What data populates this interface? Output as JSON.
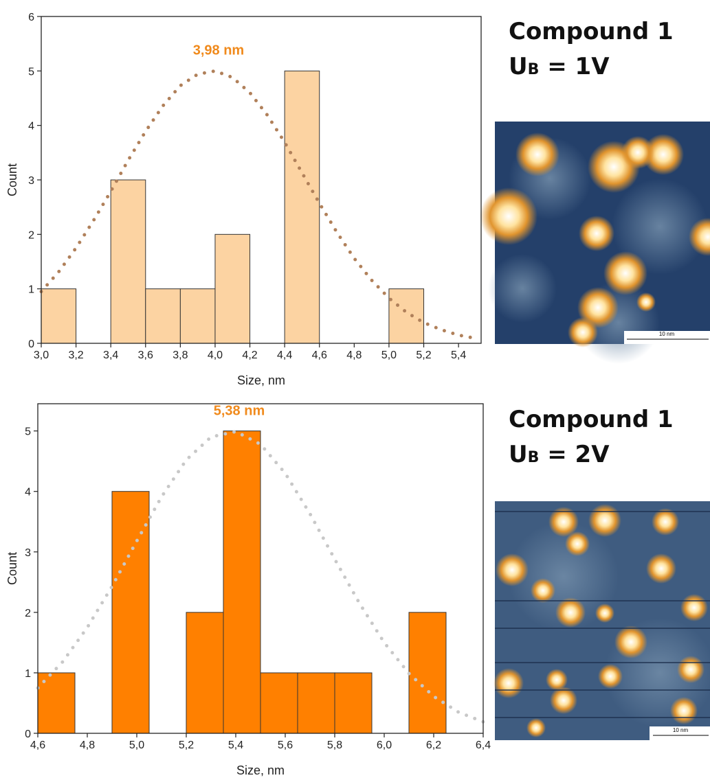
{
  "chart_data": [
    {
      "type": "histogram",
      "xlabel": "Size, nm",
      "ylabel": "Count",
      "bins": [
        3.0,
        3.2,
        3.4,
        3.6,
        3.8,
        4.0,
        4.2,
        4.4,
        4.6,
        4.8,
        5.0,
        5.2
      ],
      "values": [
        1,
        0,
        3,
        1,
        1,
        2,
        0,
        5,
        0,
        0,
        1
      ],
      "color": "#fcd3a2",
      "edgecolor": "#333333",
      "xlim": [
        3.0,
        5.53
      ],
      "ylim": [
        0,
        6
      ],
      "xticks": [
        {
          "value": 3.0,
          "label": "3,0"
        },
        {
          "value": 3.2,
          "label": "3,2"
        },
        {
          "value": 3.4,
          "label": "3,4"
        },
        {
          "value": 3.6,
          "label": "3,6"
        },
        {
          "value": 3.8,
          "label": "3,8"
        },
        {
          "value": 4.0,
          "label": "4,0"
        },
        {
          "value": 4.2,
          "label": "4,2"
        },
        {
          "value": 4.4,
          "label": "4,4"
        },
        {
          "value": 4.6,
          "label": "4,6"
        },
        {
          "value": 4.8,
          "label": "4,8"
        },
        {
          "value": 5.0,
          "label": "5,0"
        },
        {
          "value": 5.2,
          "label": "5,2"
        },
        {
          "value": 5.4,
          "label": "5,4"
        }
      ],
      "yticks": [
        0,
        1,
        2,
        3,
        4,
        5,
        6
      ],
      "fit": {
        "color": "#b0805a",
        "x": [
          3.0,
          3.1,
          3.2,
          3.3,
          3.4,
          3.5,
          3.6,
          3.7,
          3.8,
          3.9,
          4.0,
          4.1,
          4.2,
          4.3,
          4.4,
          4.5,
          4.6,
          4.7,
          4.8,
          4.9,
          5.0,
          5.1,
          5.2,
          5.3,
          5.4,
          5.5
        ],
        "values": [
          0.95,
          1.31,
          1.75,
          2.25,
          2.79,
          3.36,
          3.89,
          4.36,
          4.73,
          4.94,
          5.0,
          4.88,
          4.6,
          4.19,
          3.69,
          3.13,
          2.57,
          2.04,
          1.56,
          1.16,
          0.83,
          0.57,
          0.38,
          0.25,
          0.15,
          0.09
        ]
      },
      "annotation": {
        "text": "3,98 nm",
        "color": "#f08a1c"
      }
    },
    {
      "type": "histogram",
      "xlabel": "Size, nm",
      "ylabel": "Count",
      "bins": [
        4.6,
        4.75,
        4.9,
        5.05,
        5.2,
        5.35,
        5.5,
        5.65,
        5.8,
        5.95,
        6.1,
        6.25
      ],
      "values": [
        1,
        0,
        4,
        0,
        2,
        5,
        1,
        1,
        1,
        0,
        2
      ],
      "color": "#ff8000",
      "edgecolor": "#333333",
      "xlim": [
        4.6,
        6.4
      ],
      "ylim": [
        0,
        5.45
      ],
      "xticks": [
        {
          "value": 4.6,
          "label": "4,6"
        },
        {
          "value": 4.8,
          "label": "4,8"
        },
        {
          "value": 5.0,
          "label": "5,0"
        },
        {
          "value": 5.2,
          "label": "5,2"
        },
        {
          "value": 5.4,
          "label": "5,4"
        },
        {
          "value": 5.6,
          "label": "5,6"
        },
        {
          "value": 5.8,
          "label": "5,8"
        },
        {
          "value": 6.0,
          "label": "6,0"
        },
        {
          "value": 6.2,
          "label": "6,2"
        },
        {
          "value": 6.4,
          "label": "6,4"
        }
      ],
      "yticks": [
        0,
        1,
        2,
        3,
        4,
        5
      ],
      "fit": {
        "color": "#c8c8c8",
        "x": [
          4.6,
          4.7,
          4.8,
          4.9,
          5.0,
          5.1,
          5.2,
          5.3,
          5.4,
          5.5,
          5.6,
          5.7,
          5.8,
          5.9,
          6.0,
          6.1,
          6.2,
          6.3,
          6.4
        ],
        "values": [
          0.75,
          1.18,
          1.75,
          2.43,
          3.18,
          3.91,
          4.52,
          4.9,
          4.99,
          4.78,
          4.3,
          3.63,
          2.88,
          2.15,
          1.5,
          0.99,
          0.61,
          0.35,
          0.19
        ]
      },
      "annotation": {
        "text": "5,38 nm",
        "color": "#f08a1c"
      }
    }
  ],
  "panels": [
    {
      "title": "Compound 1",
      "symbol": "U",
      "subscript": "B",
      "condition": " = 1V",
      "scale_bar": "10 nm"
    },
    {
      "title": "Compound 1",
      "symbol": "U",
      "subscript": "B",
      "condition": " = 2V",
      "scale_bar": "10 nm"
    }
  ]
}
